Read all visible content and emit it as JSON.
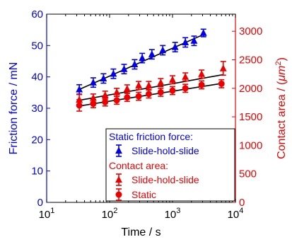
{
  "chart_data": {
    "type": "scatter",
    "xlabel": "Time / s",
    "ylabel_left": "Friction force / mN",
    "ylabel_right": "Contact area / (μm²)",
    "ylabel_right_parts": [
      "Contact area / (",
      "μm",
      "2",
      ")"
    ],
    "xscale": "log",
    "xlim": [
      10,
      10000
    ],
    "ylim_left": [
      0,
      60
    ],
    "ylim_right": [
      0,
      3300
    ],
    "x_ticks": [
      10,
      100,
      1000,
      10000
    ],
    "x_tick_labels": [
      {
        "base": "10",
        "exp": "1"
      },
      {
        "base": "10",
        "exp": "2"
      },
      {
        "base": "10",
        "exp": "3"
      },
      {
        "base": "10",
        "exp": "4"
      }
    ],
    "y_left_ticks": [
      0,
      10,
      20,
      30,
      40,
      50,
      60
    ],
    "y_left_tick_labels": [
      "0",
      "10",
      "20",
      "30",
      "40",
      "50",
      "60"
    ],
    "y_right_ticks": [
      0,
      500,
      1000,
      1500,
      2000,
      2500,
      3000
    ],
    "y_right_tick_labels": [
      "0",
      "500",
      "1000",
      "1500",
      "2000",
      "2500",
      "3000"
    ],
    "grid": false,
    "legend_placement": "bottom-right",
    "legend": {
      "header_blue": "Static friction force:",
      "header_red": "Contact area:",
      "entries": [
        "Slide-hold-slide",
        "Slide-hold-slide",
        "Static"
      ]
    },
    "colors": {
      "blue": "#0000ee",
      "red": "#ee0000",
      "black": "#000000"
    },
    "series": [
      {
        "name": "Slide-hold-slide",
        "group": "Static friction force:",
        "axis": "left",
        "marker": "triangle",
        "color": "#0000ee",
        "x": [
          33,
          55,
          80,
          115,
          170,
          250,
          330,
          470,
          700,
          1100,
          1600,
          2200,
          3100
        ],
        "y": [
          36.0,
          38.2,
          39.5,
          41.0,
          42.5,
          44.0,
          46.0,
          47.2,
          48.5,
          49.5,
          51.0,
          51.5,
          54.0
        ],
        "err": [
          1.5,
          1.5,
          1.5,
          1.5,
          1.5,
          1.5,
          1.5,
          1.5,
          1.5,
          1.5,
          1.5,
          1.5,
          1.2
        ]
      },
      {
        "name": "Slide-hold-slide",
        "group": "Contact area:",
        "axis": "right",
        "marker": "triangle",
        "color": "#ee0000",
        "x": [
          33,
          55,
          85,
          130,
          190,
          290,
          420,
          650,
          1000,
          1600,
          2900,
          6400
        ],
        "y": [
          1800,
          1830,
          1880,
          1930,
          1990,
          2050,
          2050,
          2100,
          2150,
          2200,
          2250,
          2350
        ],
        "err": [
          90,
          70,
          70,
          70,
          70,
          70,
          70,
          70,
          70,
          70,
          70,
          120
        ]
      },
      {
        "name": "Static",
        "axis": "right",
        "marker": "circle",
        "color": "#ee0000",
        "x": [
          33,
          55,
          85,
          130,
          190,
          290,
          420,
          650,
          1000,
          1600,
          2900,
          6000
        ],
        "y": [
          1700,
          1730,
          1760,
          1790,
          1840,
          1860,
          1900,
          1930,
          1960,
          2000,
          2060,
          2080
        ],
        "err": [
          100,
          70,
          70,
          70,
          70,
          70,
          70,
          70,
          70,
          70,
          70,
          70
        ]
      }
    ],
    "fit_lines": [
      {
        "axis": "left",
        "x": [
          33,
          3100
        ],
        "y": [
          36.0,
          53.5
        ]
      },
      {
        "axis": "right",
        "x": [
          33,
          6400
        ],
        "y": [
          1790,
          2240
        ]
      },
      {
        "axis": "right",
        "x": [
          33,
          6400
        ],
        "y": [
          1690,
          2090
        ]
      }
    ]
  }
}
